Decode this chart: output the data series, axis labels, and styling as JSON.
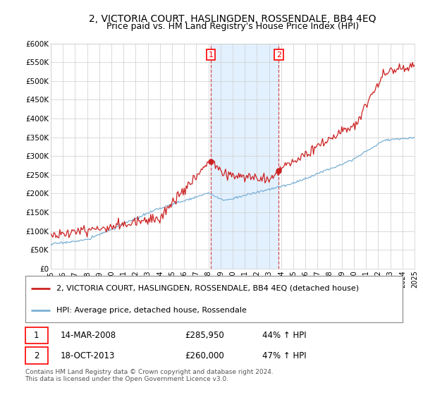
{
  "title": "2, VICTORIA COURT, HASLINGDEN, ROSSENDALE, BB4 4EQ",
  "subtitle": "Price paid vs. HM Land Registry's House Price Index (HPI)",
  "ylim": [
    0,
    600000
  ],
  "yticks": [
    0,
    50000,
    100000,
    150000,
    200000,
    250000,
    300000,
    350000,
    400000,
    450000,
    500000,
    550000,
    600000
  ],
  "ytick_labels": [
    "£0",
    "£50K",
    "£100K",
    "£150K",
    "£200K",
    "£250K",
    "£300K",
    "£350K",
    "£400K",
    "£450K",
    "£500K",
    "£550K",
    "£600K"
  ],
  "xlim": [
    1995,
    2025
  ],
  "background_color": "#ffffff",
  "plot_bg_color": "#ffffff",
  "grid_color": "#cccccc",
  "hpi_color": "#7ab0d4",
  "price_color": "#cc2222",
  "shade_color": "#ddeeff",
  "t1_year": 2008.21,
  "t2_year": 2013.79,
  "t1_price": 285950,
  "t2_price": 260000,
  "transaction1_label": "1",
  "transaction2_label": "2",
  "legend_entry1": "2, VICTORIA COURT, HASLINGDEN, ROSSENDALE, BB4 4EQ (detached house)",
  "legend_entry2": "HPI: Average price, detached house, Rossendale",
  "table_row1": [
    "1",
    "14-MAR-2008",
    "£285,950",
    "44% ↑ HPI"
  ],
  "table_row2": [
    "2",
    "18-OCT-2013",
    "£260,000",
    "47% ↑ HPI"
  ],
  "footer": "Contains HM Land Registry data © Crown copyright and database right 2024.\nThis data is licensed under the Open Government Licence v3.0.",
  "title_fontsize": 10,
  "subtitle_fontsize": 9,
  "tick_fontsize": 7.5,
  "legend_fontsize": 8,
  "table_fontsize": 8.5,
  "footer_fontsize": 6.5
}
